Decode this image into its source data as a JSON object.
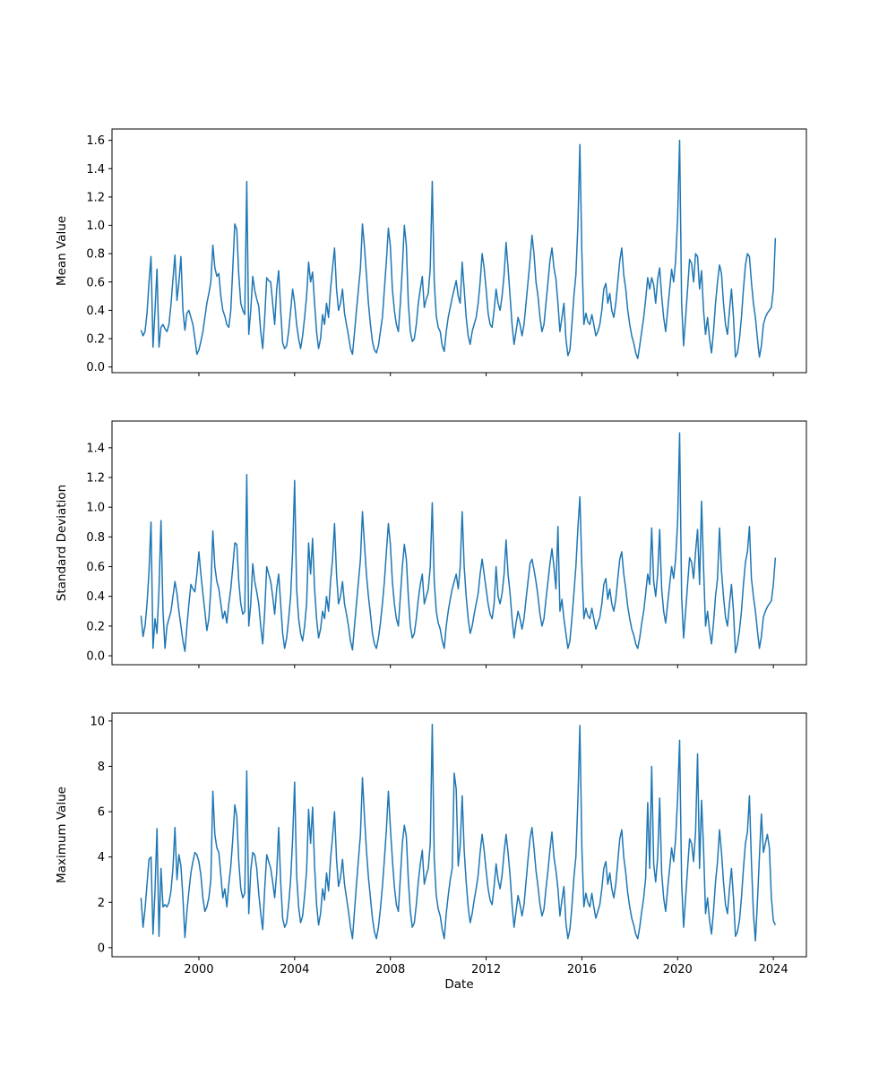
{
  "figure": {
    "xlabel": "Date",
    "background_color": "#ffffff",
    "line_color": "#1f77b4",
    "spine_color": "#000000",
    "x_axis": {
      "start": 1997.5833,
      "step": 0.0833333,
      "lim": [
        1996.37,
        2025.38
      ],
      "tick_values": [
        2000,
        2004,
        2008,
        2012,
        2016,
        2020,
        2024
      ],
      "tick_labels": [
        "2000",
        "2004",
        "2008",
        "2012",
        "2016",
        "2020",
        "2024"
      ]
    }
  },
  "chart_data": [
    {
      "type": "line",
      "id": "mean-value",
      "ylabel": "Mean Value",
      "ylim": [
        -0.04,
        1.68
      ],
      "ytick_values": [
        0.0,
        0.2,
        0.4,
        0.6,
        0.8,
        1.0,
        1.2,
        1.4,
        1.6
      ],
      "ytick_labels": [
        "0.0",
        "0.2",
        "0.4",
        "0.6",
        "0.8",
        "1.0",
        "1.2",
        "1.4",
        "1.6"
      ],
      "show_x_tick_labels": false,
      "values": [
        0.26,
        0.22,
        0.25,
        0.38,
        0.6,
        0.78,
        0.14,
        0.4,
        0.69,
        0.14,
        0.28,
        0.3,
        0.27,
        0.25,
        0.3,
        0.44,
        0.62,
        0.79,
        0.47,
        0.6,
        0.78,
        0.4,
        0.26,
        0.38,
        0.4,
        0.35,
        0.3,
        0.2,
        0.09,
        0.12,
        0.18,
        0.25,
        0.35,
        0.45,
        0.52,
        0.6,
        0.86,
        0.7,
        0.64,
        0.66,
        0.5,
        0.4,
        0.36,
        0.3,
        0.28,
        0.4,
        0.7,
        1.01,
        0.97,
        0.65,
        0.45,
        0.4,
        0.37,
        1.31,
        0.23,
        0.4,
        0.64,
        0.54,
        0.48,
        0.43,
        0.25,
        0.13,
        0.35,
        0.63,
        0.61,
        0.6,
        0.45,
        0.3,
        0.55,
        0.68,
        0.4,
        0.17,
        0.13,
        0.15,
        0.25,
        0.4,
        0.55,
        0.45,
        0.3,
        0.2,
        0.13,
        0.22,
        0.35,
        0.5,
        0.74,
        0.6,
        0.67,
        0.45,
        0.25,
        0.13,
        0.2,
        0.37,
        0.3,
        0.45,
        0.35,
        0.55,
        0.7,
        0.84,
        0.55,
        0.4,
        0.45,
        0.55,
        0.38,
        0.3,
        0.22,
        0.13,
        0.09,
        0.24,
        0.4,
        0.55,
        0.7,
        1.01,
        0.85,
        0.65,
        0.45,
        0.3,
        0.18,
        0.12,
        0.1,
        0.15,
        0.25,
        0.35,
        0.55,
        0.75,
        0.98,
        0.85,
        0.55,
        0.4,
        0.3,
        0.25,
        0.45,
        0.7,
        1.0,
        0.86,
        0.45,
        0.25,
        0.18,
        0.2,
        0.3,
        0.45,
        0.55,
        0.64,
        0.42,
        0.48,
        0.52,
        0.7,
        1.31,
        0.6,
        0.36,
        0.28,
        0.25,
        0.15,
        0.11,
        0.25,
        0.35,
        0.42,
        0.49,
        0.55,
        0.61,
        0.5,
        0.45,
        0.74,
        0.55,
        0.35,
        0.22,
        0.16,
        0.25,
        0.3,
        0.35,
        0.45,
        0.6,
        0.8,
        0.7,
        0.55,
        0.38,
        0.3,
        0.28,
        0.4,
        0.55,
        0.45,
        0.4,
        0.5,
        0.65,
        0.88,
        0.7,
        0.5,
        0.3,
        0.16,
        0.25,
        0.35,
        0.3,
        0.22,
        0.3,
        0.45,
        0.6,
        0.75,
        0.93,
        0.8,
        0.6,
        0.5,
        0.35,
        0.25,
        0.3,
        0.45,
        0.6,
        0.75,
        0.84,
        0.7,
        0.62,
        0.45,
        0.25,
        0.35,
        0.45,
        0.2,
        0.08,
        0.12,
        0.3,
        0.5,
        0.65,
        1.0,
        1.57,
        0.8,
        0.3,
        0.38,
        0.32,
        0.3,
        0.37,
        0.3,
        0.22,
        0.25,
        0.3,
        0.4,
        0.55,
        0.59,
        0.45,
        0.52,
        0.4,
        0.35,
        0.45,
        0.6,
        0.75,
        0.84,
        0.65,
        0.55,
        0.4,
        0.3,
        0.22,
        0.17,
        0.1,
        0.06,
        0.15,
        0.25,
        0.35,
        0.48,
        0.63,
        0.55,
        0.63,
        0.58,
        0.45,
        0.62,
        0.7,
        0.5,
        0.35,
        0.25,
        0.4,
        0.55,
        0.69,
        0.6,
        0.75,
        1.05,
        1.6,
        0.45,
        0.15,
        0.35,
        0.55,
        0.76,
        0.73,
        0.6,
        0.8,
        0.78,
        0.55,
        0.68,
        0.4,
        0.23,
        0.35,
        0.2,
        0.1,
        0.25,
        0.45,
        0.6,
        0.72,
        0.66,
        0.45,
        0.3,
        0.23,
        0.4,
        0.55,
        0.35,
        0.07,
        0.1,
        0.2,
        0.35,
        0.55,
        0.72,
        0.8,
        0.78,
        0.6,
        0.45,
        0.35,
        0.2,
        0.07,
        0.15,
        0.3,
        0.35,
        0.38,
        0.4,
        0.42,
        0.55,
        0.91
      ]
    },
    {
      "type": "line",
      "id": "standard-deviation",
      "ylabel": "Standard Deviation",
      "ylim": [
        -0.06,
        1.58
      ],
      "ytick_values": [
        0.0,
        0.2,
        0.4,
        0.6,
        0.8,
        1.0,
        1.2,
        1.4
      ],
      "ytick_labels": [
        "0.0",
        "0.2",
        "0.4",
        "0.6",
        "0.8",
        "1.0",
        "1.2",
        "1.4"
      ],
      "show_x_tick_labels": false,
      "values": [
        0.27,
        0.13,
        0.2,
        0.35,
        0.57,
        0.9,
        0.05,
        0.25,
        0.15,
        0.45,
        0.91,
        0.3,
        0.05,
        0.2,
        0.25,
        0.3,
        0.4,
        0.5,
        0.42,
        0.3,
        0.2,
        0.1,
        0.03,
        0.2,
        0.35,
        0.48,
        0.45,
        0.43,
        0.55,
        0.7,
        0.55,
        0.42,
        0.3,
        0.17,
        0.25,
        0.45,
        0.84,
        0.6,
        0.5,
        0.45,
        0.35,
        0.25,
        0.3,
        0.22,
        0.35,
        0.45,
        0.6,
        0.76,
        0.75,
        0.5,
        0.35,
        0.28,
        0.3,
        1.22,
        0.2,
        0.35,
        0.62,
        0.5,
        0.43,
        0.35,
        0.2,
        0.08,
        0.3,
        0.6,
        0.55,
        0.5,
        0.4,
        0.28,
        0.45,
        0.55,
        0.35,
        0.15,
        0.05,
        0.12,
        0.25,
        0.4,
        0.7,
        1.18,
        0.45,
        0.25,
        0.15,
        0.1,
        0.2,
        0.35,
        0.76,
        0.55,
        0.79,
        0.45,
        0.25,
        0.12,
        0.18,
        0.3,
        0.25,
        0.4,
        0.3,
        0.5,
        0.65,
        0.89,
        0.55,
        0.35,
        0.4,
        0.5,
        0.35,
        0.28,
        0.2,
        0.1,
        0.04,
        0.2,
        0.35,
        0.5,
        0.65,
        0.97,
        0.75,
        0.55,
        0.4,
        0.28,
        0.15,
        0.08,
        0.05,
        0.12,
        0.22,
        0.35,
        0.5,
        0.7,
        0.89,
        0.75,
        0.5,
        0.35,
        0.25,
        0.2,
        0.4,
        0.6,
        0.75,
        0.65,
        0.4,
        0.2,
        0.12,
        0.15,
        0.25,
        0.38,
        0.48,
        0.55,
        0.35,
        0.4,
        0.45,
        0.6,
        1.03,
        0.5,
        0.3,
        0.22,
        0.18,
        0.1,
        0.05,
        0.2,
        0.3,
        0.38,
        0.45,
        0.5,
        0.55,
        0.45,
        0.6,
        0.97,
        0.6,
        0.4,
        0.25,
        0.15,
        0.2,
        0.28,
        0.35,
        0.42,
        0.55,
        0.65,
        0.55,
        0.45,
        0.35,
        0.28,
        0.25,
        0.35,
        0.6,
        0.4,
        0.35,
        0.42,
        0.55,
        0.78,
        0.55,
        0.42,
        0.25,
        0.12,
        0.22,
        0.3,
        0.25,
        0.18,
        0.25,
        0.38,
        0.5,
        0.62,
        0.65,
        0.58,
        0.5,
        0.4,
        0.28,
        0.2,
        0.25,
        0.38,
        0.5,
        0.62,
        0.72,
        0.6,
        0.45,
        0.87,
        0.3,
        0.38,
        0.25,
        0.15,
        0.05,
        0.1,
        0.25,
        0.42,
        0.6,
        0.86,
        1.07,
        0.6,
        0.25,
        0.32,
        0.27,
        0.25,
        0.32,
        0.25,
        0.18,
        0.22,
        0.26,
        0.35,
        0.48,
        0.52,
        0.38,
        0.45,
        0.35,
        0.3,
        0.38,
        0.52,
        0.65,
        0.7,
        0.55,
        0.45,
        0.33,
        0.25,
        0.18,
        0.14,
        0.08,
        0.05,
        0.12,
        0.22,
        0.3,
        0.42,
        0.55,
        0.48,
        0.86,
        0.5,
        0.4,
        0.55,
        0.85,
        0.45,
        0.3,
        0.22,
        0.35,
        0.48,
        0.6,
        0.52,
        0.65,
        0.9,
        1.5,
        0.4,
        0.12,
        0.3,
        0.48,
        0.66,
        0.63,
        0.52,
        0.7,
        0.85,
        0.48,
        1.04,
        0.6,
        0.2,
        0.3,
        0.17,
        0.08,
        0.22,
        0.4,
        0.52,
        0.86,
        0.57,
        0.4,
        0.26,
        0.2,
        0.35,
        0.48,
        0.3,
        0.02,
        0.08,
        0.17,
        0.3,
        0.48,
        0.63,
        0.7,
        0.87,
        0.52,
        0.4,
        0.3,
        0.17,
        0.05,
        0.13,
        0.26,
        0.3,
        0.33,
        0.35,
        0.37,
        0.48,
        0.66
      ]
    },
    {
      "type": "line",
      "id": "maximum-value",
      "ylabel": "Maximum Value",
      "ylim": [
        -0.4,
        10.35
      ],
      "ytick_values": [
        0,
        2,
        4,
        6,
        8,
        10
      ],
      "ytick_labels": [
        "0",
        "2",
        "4",
        "6",
        "8",
        "10"
      ],
      "show_x_tick_labels": true,
      "values": [
        2.2,
        0.9,
        1.7,
        2.8,
        3.9,
        4.0,
        0.6,
        2.5,
        5.25,
        0.5,
        3.5,
        1.8,
        1.9,
        1.8,
        2.0,
        2.5,
        3.5,
        5.3,
        3.0,
        4.1,
        3.6,
        2.2,
        0.45,
        1.6,
        2.5,
        3.3,
        3.8,
        4.2,
        4.1,
        3.8,
        3.2,
        2.2,
        1.6,
        1.8,
        2.2,
        3.0,
        6.9,
        5.0,
        4.4,
        4.2,
        3.2,
        2.2,
        2.6,
        1.8,
        2.8,
        3.6,
        4.8,
        6.3,
        5.8,
        3.8,
        2.6,
        2.2,
        2.4,
        7.8,
        1.5,
        3.4,
        4.2,
        4.1,
        3.5,
        2.4,
        1.5,
        0.8,
        2.6,
        4.1,
        3.8,
        3.5,
        2.9,
        2.2,
        3.3,
        5.3,
        2.9,
        1.3,
        0.9,
        1.1,
        1.9,
        3.0,
        4.8,
        7.3,
        3.2,
        1.8,
        1.1,
        1.4,
        2.3,
        3.4,
        6.1,
        4.6,
        6.2,
        3.6,
        1.9,
        1.0,
        1.5,
        2.6,
        2.1,
        3.3,
        2.5,
        3.9,
        4.9,
        6.0,
        3.9,
        2.7,
        3.1,
        3.9,
        2.8,
        2.2,
        1.6,
        0.9,
        0.4,
        1.6,
        2.8,
        3.9,
        5.0,
        7.5,
        5.8,
        4.3,
        3.1,
        2.2,
        1.3,
        0.7,
        0.4,
        0.9,
        1.7,
        2.7,
        3.9,
        5.2,
        6.9,
        5.3,
        3.9,
        2.7,
        1.9,
        1.6,
        3.1,
        4.6,
        5.4,
        4.9,
        3.0,
        1.6,
        0.9,
        1.1,
        1.9,
        2.9,
        3.7,
        4.3,
        2.8,
        3.2,
        3.5,
        4.6,
        9.85,
        3.9,
        2.3,
        1.7,
        1.4,
        0.8,
        0.4,
        1.5,
        2.3,
        3.0,
        3.5,
        7.7,
        7.0,
        3.6,
        4.5,
        6.7,
        4.3,
        2.9,
        1.8,
        1.1,
        1.5,
        2.1,
        2.6,
        3.2,
        4.2,
        5.0,
        4.3,
        3.4,
        2.6,
        2.1,
        1.9,
        2.7,
        3.7,
        3.0,
        2.6,
        3.2,
        4.2,
        5.0,
        4.2,
        3.2,
        1.9,
        0.9,
        1.6,
        2.3,
        1.9,
        1.4,
        1.9,
        2.9,
        3.9,
        4.8,
        5.3,
        4.4,
        3.4,
        2.7,
        1.9,
        1.4,
        1.7,
        2.6,
        3.4,
        4.3,
        5.1,
        4.0,
        3.4,
        2.6,
        1.4,
        2.1,
        2.7,
        1.1,
        0.4,
        0.8,
        1.8,
        3.1,
        4.0,
        6.5,
        9.8,
        4.4,
        1.8,
        2.4,
        2.0,
        1.8,
        2.4,
        1.8,
        1.3,
        1.6,
        1.9,
        2.6,
        3.5,
        3.8,
        2.8,
        3.3,
        2.6,
        2.2,
        2.8,
        3.8,
        4.8,
        5.2,
        4.0,
        3.3,
        2.4,
        1.8,
        1.3,
        1.0,
        0.6,
        0.4,
        0.9,
        1.6,
        2.2,
        3.1,
        6.4,
        3.5,
        8.0,
        3.7,
        2.9,
        4.0,
        6.6,
        3.3,
        2.2,
        1.6,
        2.6,
        3.5,
        4.4,
        3.8,
        4.8,
        6.6,
        9.15,
        2.9,
        0.9,
        2.2,
        3.5,
        4.8,
        4.6,
        3.8,
        5.1,
        8.55,
        3.5,
        6.5,
        4.4,
        1.5,
        2.2,
        1.2,
        0.6,
        1.6,
        2.9,
        3.8,
        5.2,
        4.2,
        2.9,
        1.9,
        1.5,
        2.6,
        3.5,
        2.2,
        0.5,
        0.7,
        1.2,
        2.2,
        3.5,
        4.6,
        5.1,
        6.7,
        3.8,
        1.5,
        0.3,
        2.0,
        4.0,
        5.9,
        4.2,
        4.6,
        5.0,
        4.4,
        2.2,
        1.2,
        1.0
      ]
    }
  ]
}
